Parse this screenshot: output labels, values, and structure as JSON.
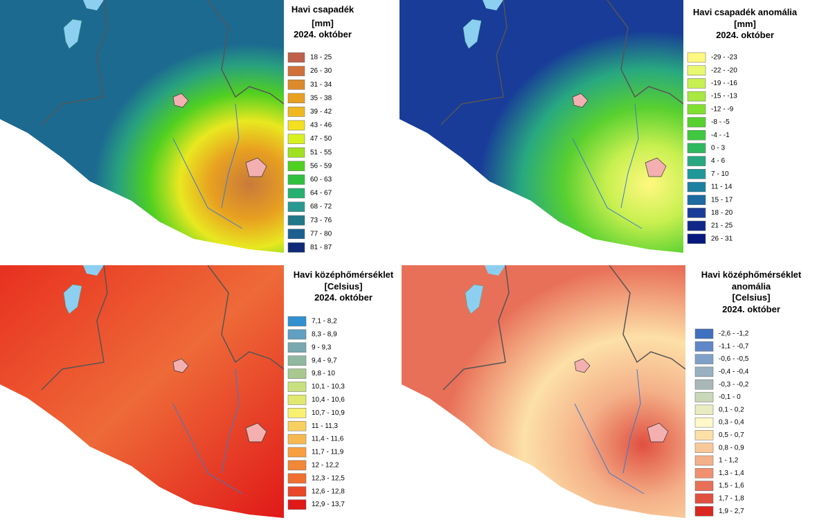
{
  "panels": [
    {
      "title": [
        "Havi csapadék",
        "[mm]",
        "2024. október"
      ],
      "legend": [
        {
          "label": "18 - 25",
          "color": "#c0604a"
        },
        {
          "label": "26 - 30",
          "color": "#d0703a"
        },
        {
          "label": "31 - 34",
          "color": "#dc8a2a"
        },
        {
          "label": "35 - 38",
          "color": "#e8a020"
        },
        {
          "label": "39 - 42",
          "color": "#f0b820"
        },
        {
          "label": "43 - 46",
          "color": "#f4e020"
        },
        {
          "label": "47 - 50",
          "color": "#d8f020"
        },
        {
          "label": "51 - 55",
          "color": "#a0e020"
        },
        {
          "label": "56 - 59",
          "color": "#50d020"
        },
        {
          "label": "60 - 63",
          "color": "#30c040"
        },
        {
          "label": "64 - 67",
          "color": "#28b070"
        },
        {
          "label": "68 - 72",
          "color": "#289890"
        },
        {
          "label": "73 - 76",
          "color": "#207888"
        },
        {
          "label": "77 - 80",
          "color": "#1c6090"
        },
        {
          "label": "81 - 87",
          "color": "#102a78"
        }
      ]
    },
    {
      "title": [
        "Havi csapadék anomália",
        "[mm]",
        "2024. október"
      ],
      "legend": [
        {
          "label": "-29 - -23",
          "color": "#fff880"
        },
        {
          "label": "-22 - -20",
          "color": "#e8f870"
        },
        {
          "label": "-19 - -16",
          "color": "#c8f050"
        },
        {
          "label": "-15 - -13",
          "color": "#a8e840"
        },
        {
          "label": "-12 - -9",
          "color": "#80e030"
        },
        {
          "label": "-8 - -5",
          "color": "#58d030"
        },
        {
          "label": "-4 - -1",
          "color": "#40c840"
        },
        {
          "label": "0 - 3",
          "color": "#30b860"
        },
        {
          "label": "4 - 6",
          "color": "#28a880"
        },
        {
          "label": "7 - 10",
          "color": "#209898"
        },
        {
          "label": "11 - 14",
          "color": "#1c80a0"
        },
        {
          "label": "15 - 17",
          "color": "#1c6aa0"
        },
        {
          "label": "18 - 20",
          "color": "#183c98"
        },
        {
          "label": "21 - 25",
          "color": "#102888"
        },
        {
          "label": "26 - 31",
          "color": "#081880"
        }
      ]
    },
    {
      "title": [
        "Havi középhőmérséklet",
        "[Celsius]",
        "2024. október"
      ],
      "legend": [
        {
          "label": "7,1 - 8,2",
          "color": "#3090d0"
        },
        {
          "label": "8,3 - 8,9",
          "color": "#60a0c0"
        },
        {
          "label": "9 - 9,3",
          "color": "#78a8b0"
        },
        {
          "label": "9,4 - 9,7",
          "color": "#90b8a0"
        },
        {
          "label": "9,8 - 10",
          "color": "#a8c890"
        },
        {
          "label": "10,1 - 10,3",
          "color": "#c8e080"
        },
        {
          "label": "10,4 - 10,6",
          "color": "#e0e870"
        },
        {
          "label": "10,7 - 10,9",
          "color": "#f8f070"
        },
        {
          "label": "11 - 11,3",
          "color": "#f8d060"
        },
        {
          "label": "11,4 - 11,6",
          "color": "#f8b850"
        },
        {
          "label": "11,7 - 11,9",
          "color": "#f8a040"
        },
        {
          "label": "12 - 12,2",
          "color": "#f08838"
        },
        {
          "label": "12,3 - 12,5",
          "color": "#f07030"
        },
        {
          "label": "12,6 - 12,8",
          "color": "#e84828"
        },
        {
          "label": "12,9 - 13,7",
          "color": "#e01818"
        }
      ]
    },
    {
      "title": [
        "Havi középhőmérséklet",
        "anomália",
        "[Celsius]",
        "2024. október"
      ],
      "legend": [
        {
          "label": "-2,6 - -1,2",
          "color": "#4070c0"
        },
        {
          "label": "-1,1 - -0,7",
          "color": "#6088c8"
        },
        {
          "label": "-0,6 - -0,5",
          "color": "#80a0c8"
        },
        {
          "label": "-0,4 - -0,4",
          "color": "#98b0c0"
        },
        {
          "label": "-0,3 - -0,2",
          "color": "#a8b8b8"
        },
        {
          "label": "-0,1 - 0",
          "color": "#c8d8b8"
        },
        {
          "label": "0,1 - 0,2",
          "color": "#e8ecc0"
        },
        {
          "label": "0,3 - 0,4",
          "color": "#fff8c8"
        },
        {
          "label": "0,5 - 0,7",
          "color": "#fde0a8"
        },
        {
          "label": "0,8 - 0,9",
          "color": "#f8c898"
        },
        {
          "label": "1 - 1,2",
          "color": "#f4b088"
        },
        {
          "label": "1,3 - 1,4",
          "color": "#f09070"
        },
        {
          "label": "1,5 - 1,6",
          "color": "#e87058"
        },
        {
          "label": "1,7 - 1,8",
          "color": "#e05040"
        },
        {
          "label": "1,9 - 2,7",
          "color": "#d82820"
        }
      ]
    }
  ]
}
